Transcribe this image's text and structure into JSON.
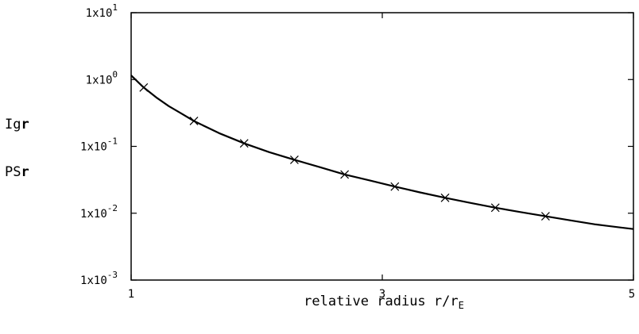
{
  "chart_data": {
    "type": "line",
    "title": "",
    "xlabel": "relative radius r/r",
    "xlabel_subscript": "E",
    "ylabel_lines": [
      {
        "prefix": "Ig",
        "bold": "r"
      },
      {
        "prefix": "PS",
        "bold": "r"
      }
    ],
    "xlim": [
      1,
      5
    ],
    "ylim": [
      0.001,
      10
    ],
    "y_scale": "log",
    "grid": false,
    "x_ticks": [
      {
        "value": 1,
        "label": "1"
      },
      {
        "value": 3,
        "label": "3"
      },
      {
        "value": 5,
        "label": "5"
      }
    ],
    "y_ticks": [
      {
        "value": 10,
        "base": "1x10",
        "exp": "1"
      },
      {
        "value": 1,
        "base": "1x10",
        "exp": "0"
      },
      {
        "value": 0.1,
        "base": "1x10",
        "exp": "-1"
      },
      {
        "value": 0.01,
        "base": "1x10",
        "exp": "-2"
      },
      {
        "value": 0.001,
        "base": "1x10",
        "exp": "-3"
      }
    ],
    "series": [
      {
        "style": "line",
        "color": "#000000",
        "x": [
          1.0,
          1.1,
          1.2,
          1.3,
          1.4,
          1.5,
          1.7,
          1.9,
          2.1,
          2.3,
          2.5,
          2.7,
          2.9,
          3.1,
          3.3,
          3.5,
          3.7,
          3.9,
          4.1,
          4.3,
          4.5,
          4.7,
          4.9,
          5.0
        ],
        "y": [
          1.15,
          0.76,
          0.54,
          0.4,
          0.31,
          0.24,
          0.158,
          0.111,
          0.082,
          0.063,
          0.049,
          0.038,
          0.031,
          0.025,
          0.0205,
          0.017,
          0.0143,
          0.0121,
          0.0104,
          0.009,
          0.0078,
          0.0068,
          0.0061,
          0.0058
        ]
      },
      {
        "style": "markers",
        "marker": "x",
        "color": "#000000",
        "x": [
          1.1,
          1.5,
          1.9,
          2.3,
          2.7,
          3.1,
          3.5,
          3.9,
          4.3
        ],
        "y": [
          0.76,
          0.24,
          0.111,
          0.063,
          0.038,
          0.025,
          0.017,
          0.0121,
          0.009
        ]
      }
    ]
  }
}
